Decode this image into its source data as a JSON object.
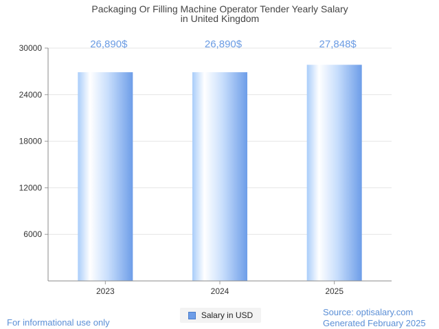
{
  "chart_data": {
    "type": "bar",
    "title_line1": "Packaging Or Filling Machine Operator Tender Yearly Salary",
    "title_line2": "in United Kingdom",
    "categories": [
      "2023",
      "2024",
      "2025"
    ],
    "series": [
      {
        "name": "Salary in USD",
        "values": [
          26890,
          26890,
          27848
        ],
        "labels": [
          "26,890$",
          "26,890$",
          "27,848$"
        ]
      }
    ],
    "yticks": [
      6000,
      12000,
      18000,
      24000,
      30000
    ],
    "ylim": [
      0,
      30000
    ],
    "grid": true,
    "legend_position": "bottom"
  },
  "colors": {
    "bar_light": "#ffffff",
    "bar_mid": "#bcd6fb",
    "bar_dark": "#6d9de8",
    "value_label": "#6a9be3",
    "footer_text": "#5b8fd6"
  },
  "footer": {
    "disclaimer": "For informational use only",
    "source": "Source: optisalary.com",
    "generated": "Generated February 2025"
  }
}
